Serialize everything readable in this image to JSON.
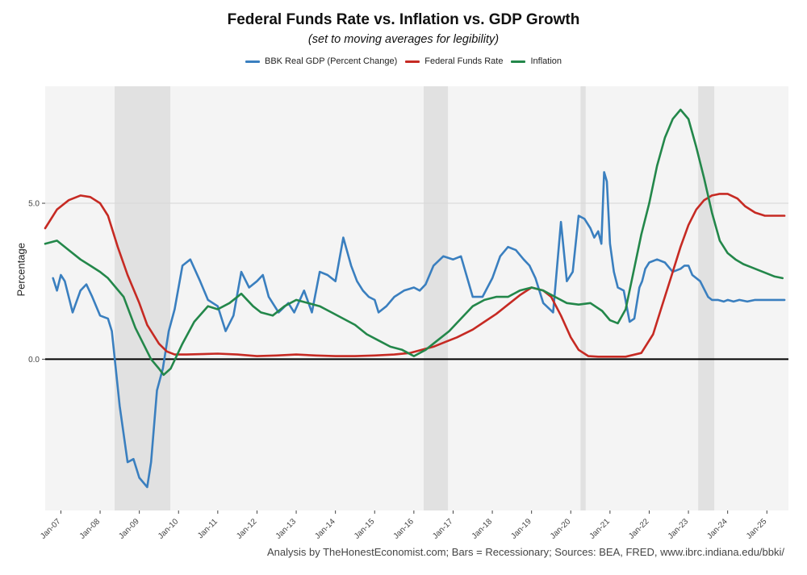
{
  "chart_data": {
    "type": "line",
    "title": "Federal Funds Rate vs. Inflation vs. GDP Growth",
    "subtitle": "(set to moving averages for legibility)",
    "xlabel": "",
    "ylabel": "Percentage",
    "caption": "Analysis by TheHonestEconomist.com; Bars = Recessionary; Sources: BEA, FRED, www.ibrc.indiana.edu/bbki/",
    "x_range": [
      2006.6,
      2025.55
    ],
    "ylim": [
      -4.85,
      8.75
    ],
    "y_ticks": [
      0.0,
      5.0
    ],
    "y_tick_labels": [
      "0.0",
      "5.0"
    ],
    "x_ticks": [
      2007.0,
      2008.0,
      2009.0,
      2010.0,
      2011.0,
      2012.0,
      2013.0,
      2014.0,
      2015.0,
      2016.0,
      2017.0,
      2018.0,
      2019.0,
      2020.0,
      2021.0,
      2022.0,
      2023.0,
      2024.0,
      2025.0
    ],
    "x_tick_labels": [
      "Jan-07",
      "Jan-08",
      "Jan-09",
      "Jan-10",
      "Jan-11",
      "Jan-12",
      "Jan-13",
      "Jan-14",
      "Jan-15",
      "Jan-16",
      "Jan-17",
      "Jan-18",
      "Jan-19",
      "Jan-20",
      "Jan-21",
      "Jan-22",
      "Jan-23",
      "Jan-24",
      "Jan-25"
    ],
    "recession_bars": [
      [
        2008.37,
        2009.79
      ],
      [
        2016.25,
        2016.87
      ],
      [
        2020.25,
        2020.38
      ],
      [
        2023.25,
        2023.66
      ]
    ],
    "zero_line": 0.0,
    "grid": true,
    "legend": "top-center",
    "series": [
      {
        "name": "BBK Real GDP (Percent Change)",
        "color": "#3a7fbf",
        "x": [
          2006.8,
          2006.9,
          2007.0,
          2007.1,
          2007.3,
          2007.5,
          2007.65,
          2007.8,
          2008.0,
          2008.2,
          2008.3,
          2008.5,
          2008.7,
          2008.85,
          2009.0,
          2009.2,
          2009.3,
          2009.45,
          2009.6,
          2009.75,
          2009.9,
          2010.1,
          2010.3,
          2010.55,
          2010.75,
          2011.0,
          2011.2,
          2011.4,
          2011.6,
          2011.8,
          2012.0,
          2012.15,
          2012.3,
          2012.55,
          2012.8,
          2012.95,
          2013.2,
          2013.4,
          2013.6,
          2013.8,
          2014.0,
          2014.2,
          2014.4,
          2014.55,
          2014.7,
          2014.85,
          2015.0,
          2015.1,
          2015.3,
          2015.5,
          2015.75,
          2016.0,
          2016.15,
          2016.3,
          2016.5,
          2016.75,
          2017.0,
          2017.2,
          2017.5,
          2017.75,
          2018.0,
          2018.2,
          2018.4,
          2018.6,
          2018.8,
          2018.95,
          2019.1,
          2019.3,
          2019.55,
          2019.75,
          2019.9,
          2020.05,
          2020.2,
          2020.35,
          2020.5,
          2020.6,
          2020.7,
          2020.78,
          2020.85,
          2020.92,
          2021.0,
          2021.1,
          2021.2,
          2021.35,
          2021.5,
          2021.62,
          2021.75,
          2021.82,
          2021.9,
          2022.0,
          2022.2,
          2022.4,
          2022.6,
          2022.8,
          2022.9,
          2023.0,
          2023.1,
          2023.3,
          2023.5,
          2023.6,
          2023.75,
          2023.9,
          2024.0,
          2024.15,
          2024.3,
          2024.5,
          2024.7,
          2024.9,
          2025.0,
          2025.1,
          2025.2,
          2025.35,
          2025.45
        ],
        "values": [
          2.6,
          2.2,
          2.7,
          2.5,
          1.5,
          2.2,
          2.4,
          2.0,
          1.4,
          1.3,
          0.9,
          -1.5,
          -3.3,
          -3.2,
          -3.8,
          -4.1,
          -3.3,
          -1.0,
          -0.3,
          0.9,
          1.6,
          3.0,
          3.2,
          2.5,
          1.9,
          1.7,
          0.9,
          1.4,
          2.8,
          2.3,
          2.5,
          2.7,
          2.0,
          1.5,
          1.8,
          1.5,
          2.2,
          1.5,
          2.8,
          2.7,
          2.5,
          3.9,
          3.0,
          2.5,
          2.2,
          2.0,
          1.9,
          1.5,
          1.7,
          2.0,
          2.2,
          2.3,
          2.2,
          2.4,
          3.0,
          3.3,
          3.2,
          3.3,
          2.0,
          2.0,
          2.6,
          3.3,
          3.6,
          3.5,
          3.2,
          3.0,
          2.6,
          1.8,
          1.5,
          4.4,
          2.5,
          2.8,
          4.6,
          4.5,
          4.2,
          3.9,
          4.1,
          3.7,
          6.0,
          5.7,
          3.7,
          2.8,
          2.3,
          2.2,
          1.2,
          1.3,
          2.3,
          2.5,
          2.9,
          3.1,
          3.2,
          3.1,
          2.8,
          2.9,
          3.0,
          3.0,
          2.7,
          2.5,
          2.0,
          1.9,
          1.9,
          1.85,
          1.9,
          1.85,
          1.9,
          1.85,
          1.9,
          1.9,
          1.9,
          1.9,
          1.9,
          1.9,
          1.9
        ]
      },
      {
        "name": "Federal Funds Rate",
        "color": "#c62a23",
        "x": [
          2006.6,
          2006.9,
          2007.2,
          2007.5,
          2007.75,
          2008.0,
          2008.2,
          2008.45,
          2008.7,
          2009.0,
          2009.2,
          2009.5,
          2009.7,
          2009.9,
          2010.2,
          2011.0,
          2011.5,
          2012.0,
          2012.5,
          2013.0,
          2013.5,
          2014.0,
          2014.5,
          2015.0,
          2015.5,
          2015.9,
          2016.2,
          2016.5,
          2016.8,
          2017.1,
          2017.5,
          2017.8,
          2018.1,
          2018.4,
          2018.7,
          2019.0,
          2019.3,
          2019.5,
          2019.75,
          2020.0,
          2020.2,
          2020.45,
          2020.7,
          2020.9,
          2021.1,
          2021.4,
          2021.8,
          2022.1,
          2022.3,
          2022.55,
          2022.8,
          2023.0,
          2023.2,
          2023.4,
          2023.6,
          2023.8,
          2024.0,
          2024.25,
          2024.45,
          2024.7,
          2024.95,
          2025.15,
          2025.35,
          2025.45
        ],
        "values": [
          4.2,
          4.8,
          5.1,
          5.25,
          5.2,
          5.0,
          4.6,
          3.6,
          2.7,
          1.8,
          1.1,
          0.5,
          0.25,
          0.15,
          0.15,
          0.18,
          0.15,
          0.1,
          0.12,
          0.15,
          0.12,
          0.1,
          0.1,
          0.12,
          0.15,
          0.2,
          0.3,
          0.4,
          0.55,
          0.7,
          0.95,
          1.2,
          1.45,
          1.75,
          2.05,
          2.3,
          2.2,
          2.0,
          1.4,
          0.7,
          0.3,
          0.1,
          0.08,
          0.08,
          0.08,
          0.08,
          0.2,
          0.8,
          1.6,
          2.6,
          3.6,
          4.3,
          4.8,
          5.1,
          5.25,
          5.3,
          5.3,
          5.15,
          4.9,
          4.7,
          4.6,
          4.6,
          4.6,
          4.6
        ]
      },
      {
        "name": "Inflation",
        "color": "#23874a",
        "x": [
          2006.6,
          2006.9,
          2007.2,
          2007.5,
          2007.75,
          2008.0,
          2008.2,
          2008.4,
          2008.6,
          2008.75,
          2008.9,
          2009.1,
          2009.3,
          2009.5,
          2009.62,
          2009.8,
          2010.1,
          2010.4,
          2010.75,
          2011.0,
          2011.3,
          2011.6,
          2011.9,
          2012.1,
          2012.4,
          2012.7,
          2013.0,
          2013.3,
          2013.6,
          2013.9,
          2014.2,
          2014.5,
          2014.8,
          2015.1,
          2015.4,
          2015.7,
          2016.0,
          2016.3,
          2016.6,
          2016.9,
          2017.2,
          2017.5,
          2017.8,
          2018.1,
          2018.4,
          2018.7,
          2019.0,
          2019.3,
          2019.6,
          2019.9,
          2020.2,
          2020.5,
          2020.8,
          2021.0,
          2021.2,
          2021.4,
          2021.6,
          2021.8,
          2022.0,
          2022.2,
          2022.4,
          2022.6,
          2022.8,
          2023.0,
          2023.2,
          2023.4,
          2023.6,
          2023.8,
          2024.0,
          2024.2,
          2024.4,
          2024.6,
          2024.8,
          2025.0,
          2025.2,
          2025.4
        ],
        "values": [
          3.7,
          3.8,
          3.5,
          3.2,
          3.0,
          2.8,
          2.6,
          2.3,
          2.0,
          1.5,
          1.0,
          0.5,
          0.0,
          -0.3,
          -0.5,
          -0.3,
          0.5,
          1.2,
          1.7,
          1.6,
          1.8,
          2.1,
          1.7,
          1.5,
          1.4,
          1.7,
          1.9,
          1.8,
          1.7,
          1.5,
          1.3,
          1.1,
          0.8,
          0.6,
          0.4,
          0.3,
          0.1,
          0.3,
          0.6,
          0.9,
          1.3,
          1.7,
          1.9,
          2.0,
          2.0,
          2.2,
          2.3,
          2.2,
          2.0,
          1.8,
          1.75,
          1.8,
          1.55,
          1.25,
          1.15,
          1.6,
          2.8,
          4.0,
          5.0,
          6.2,
          7.1,
          7.7,
          8.0,
          7.7,
          6.8,
          5.8,
          4.7,
          3.8,
          3.4,
          3.2,
          3.05,
          2.95,
          2.85,
          2.75,
          2.65,
          2.6
        ]
      }
    ]
  }
}
